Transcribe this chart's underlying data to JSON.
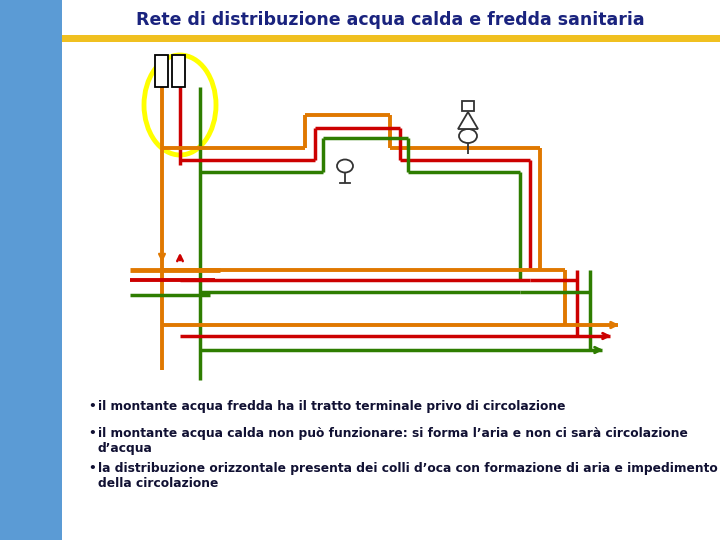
{
  "title": "Rete di distribuzione acqua calda e fredda sanitaria",
  "title_color": "#1a237e",
  "title_fontsize": 12.5,
  "bg_color": "#ffffff",
  "left_panel_color": "#5b9bd5",
  "top_bar_color": "#f0c020",
  "color_orange": "#e07800",
  "color_red": "#cc0000",
  "color_green": "#2e7d00",
  "color_yellow": "#ffff00",
  "bullet_texts": [
    "il montante acqua fredda ha il tratto terminale privo di circolazione",
    "il montante acqua calda non può funzionare: si forma l’aria e non ci sarà circolazione d’acqua",
    "la distribuzione orizzontale presenta dei colli d’oca con formazione di aria e impedimento della circolazione"
  ],
  "bullet_fontsize": 8.8,
  "bullet_color": "#111133"
}
